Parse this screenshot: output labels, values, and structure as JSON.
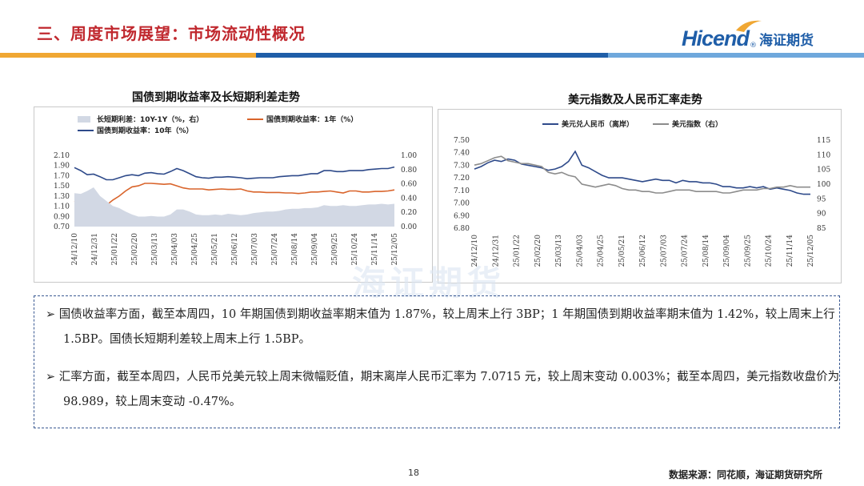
{
  "header": {
    "title": "三、周度市场展望：市场流动性概况",
    "logo_en": "Hicend",
    "logo_reg": "®",
    "logo_cn": "海证期货"
  },
  "colors": {
    "title_red": "#c0282e",
    "bar_orange": "#f0a733",
    "bar_blue": "#1f5ea8",
    "bar_lightblue": "#6fa8dc",
    "navy": "#2e4a8a",
    "orange_line": "#d9642b",
    "gray_line": "#8c8c8c",
    "area": "#d2d8e4"
  },
  "chart_data": [
    {
      "type": "line",
      "title": "国债到期收益率及长短期利差走势",
      "legend": [
        "长短期利差：10Y-1Y（%，右）",
        "国债到期收益率：1年（%）",
        "国债到期收益率：10年（%）"
      ],
      "x_ticks": [
        "24/12/10",
        "24/12/31",
        "25/01/22",
        "25/02/20",
        "25/03/13",
        "25/04/03",
        "25/04/25",
        "25/05/21",
        "25/06/12",
        "25/07/03",
        "25/07/24",
        "25/08/14",
        "25/09/04",
        "25/09/25",
        "25/10/24",
        "25/11/14",
        "25/12/05"
      ],
      "yleft_ticks": [
        "2.10",
        "1.90",
        "1.70",
        "1.50",
        "1.30",
        "1.10",
        "0.90",
        "0.70"
      ],
      "yright_ticks": [
        "1.00",
        "0.80",
        "0.60",
        "0.40",
        "0.20",
        "0.00"
      ],
      "ylim_left": [
        0.7,
        2.1
      ],
      "ylim_right": [
        0.0,
        1.0
      ],
      "series": [
        {
          "name": "国债到期收益率：10年（%）",
          "axis": "left",
          "values": [
            1.86,
            1.8,
            1.72,
            1.73,
            1.68,
            1.62,
            1.62,
            1.66,
            1.7,
            1.72,
            1.7,
            1.75,
            1.76,
            1.74,
            1.73,
            1.78,
            1.84,
            1.8,
            1.74,
            1.68,
            1.66,
            1.65,
            1.67,
            1.67,
            1.68,
            1.67,
            1.66,
            1.64,
            1.65,
            1.66,
            1.66,
            1.66,
            1.68,
            1.69,
            1.7,
            1.7,
            1.72,
            1.74,
            1.74,
            1.8,
            1.8,
            1.78,
            1.78,
            1.8,
            1.8,
            1.8,
            1.82,
            1.83,
            1.84,
            1.84,
            1.87
          ]
        },
        {
          "name": "国债到期收益率：1年（%）",
          "axis": "left",
          "values": [
            1.2,
            1.15,
            1.03,
            0.98,
            1.08,
            1.12,
            1.22,
            1.3,
            1.4,
            1.48,
            1.5,
            1.55,
            1.55,
            1.54,
            1.53,
            1.54,
            1.5,
            1.46,
            1.44,
            1.44,
            1.44,
            1.42,
            1.43,
            1.44,
            1.43,
            1.43,
            1.44,
            1.4,
            1.38,
            1.38,
            1.37,
            1.37,
            1.37,
            1.36,
            1.36,
            1.35,
            1.36,
            1.38,
            1.38,
            1.39,
            1.4,
            1.38,
            1.36,
            1.4,
            1.4,
            1.38,
            1.38,
            1.39,
            1.39,
            1.4,
            1.42
          ]
        },
        {
          "name": "长短期利差：10Y-1Y（%，右）",
          "axis": "right",
          "values": [
            0.47,
            0.46,
            0.5,
            0.55,
            0.43,
            0.36,
            0.29,
            0.26,
            0.21,
            0.17,
            0.14,
            0.14,
            0.15,
            0.14,
            0.14,
            0.17,
            0.24,
            0.24,
            0.21,
            0.17,
            0.16,
            0.16,
            0.17,
            0.16,
            0.18,
            0.17,
            0.16,
            0.17,
            0.19,
            0.2,
            0.21,
            0.21,
            0.22,
            0.24,
            0.25,
            0.25,
            0.26,
            0.26,
            0.27,
            0.3,
            0.29,
            0.29,
            0.3,
            0.29,
            0.29,
            0.3,
            0.31,
            0.31,
            0.32,
            0.31,
            0.32
          ]
        }
      ]
    },
    {
      "type": "line",
      "title": "美元指数及人民币汇率走势",
      "legend": [
        "美元兑人民币（离岸）",
        "美元指数（右）"
      ],
      "x_ticks": [
        "24/12/10",
        "24/12/31",
        "25/01/22",
        "25/02/20",
        "25/03/13",
        "25/04/03",
        "25/04/25",
        "25/05/21",
        "25/06/12",
        "25/07/03",
        "25/07/24",
        "25/08/14",
        "25/09/04",
        "25/09/25",
        "25/10/24",
        "25/11/14",
        "25/12/05"
      ],
      "yleft_ticks": [
        "7.50",
        "7.40",
        "7.30",
        "7.20",
        "7.10",
        "7.00",
        "6.90",
        "6.80"
      ],
      "yright_ticks": [
        "115",
        "110",
        "105",
        "100",
        "95",
        "90",
        "85"
      ],
      "ylim_left": [
        6.8,
        7.5
      ],
      "ylim_right": [
        85,
        115
      ],
      "series": [
        {
          "name": "美元兑人民币（离岸）",
          "axis": "left",
          "values": [
            7.27,
            7.29,
            7.32,
            7.34,
            7.33,
            7.35,
            7.34,
            7.31,
            7.3,
            7.29,
            7.28,
            7.26,
            7.27,
            7.29,
            7.33,
            7.41,
            7.3,
            7.28,
            7.25,
            7.22,
            7.2,
            7.2,
            7.2,
            7.19,
            7.18,
            7.17,
            7.18,
            7.19,
            7.18,
            7.18,
            7.16,
            7.18,
            7.17,
            7.17,
            7.16,
            7.16,
            7.15,
            7.13,
            7.13,
            7.12,
            7.12,
            7.13,
            7.12,
            7.13,
            7.11,
            7.12,
            7.11,
            7.1,
            7.08,
            7.07,
            7.07
          ]
        },
        {
          "name": "美元指数（右）",
          "axis": "right",
          "values": [
            106.5,
            107.0,
            108.0,
            109.0,
            109.5,
            108.0,
            107.5,
            107.0,
            107.0,
            106.5,
            106.0,
            104.0,
            103.5,
            104.0,
            103.0,
            102.5,
            100.0,
            99.5,
            99.0,
            99.5,
            100.0,
            99.5,
            98.5,
            98.0,
            98.0,
            97.5,
            97.5,
            97.0,
            97.0,
            97.5,
            98.0,
            98.0,
            98.0,
            97.5,
            97.5,
            97.5,
            97.5,
            97.0,
            97.0,
            97.5,
            98.0,
            98.0,
            98.0,
            98.5,
            98.5,
            99.0,
            99.0,
            99.5,
            99.0,
            99.0,
            98.99
          ]
        }
      ]
    }
  ],
  "notes": {
    "bullet1": "国债收益率方面，截至本周四，10 年期国债到期收益率期末值为 1.87%，较上周末上行 3BP；1 年期国债到期收益率期末值为 1.42%，较上周末上行 1.5BP。国债长短期利差较上周末上行 1.5BP。",
    "bullet2": "汇率方面，截至本周四，人民币兑美元较上周末微幅贬值，期末离岸人民币汇率为 7.0715 元，较上周末变动 0.003%；截至本周四，美元指数收盘价为 98.989，较上周末变动 -0.47%。",
    "marker": "➢"
  },
  "footer": {
    "page": "18",
    "source": "数据来源：同花顺，海证期货研究所"
  },
  "watermark": "海证期货"
}
